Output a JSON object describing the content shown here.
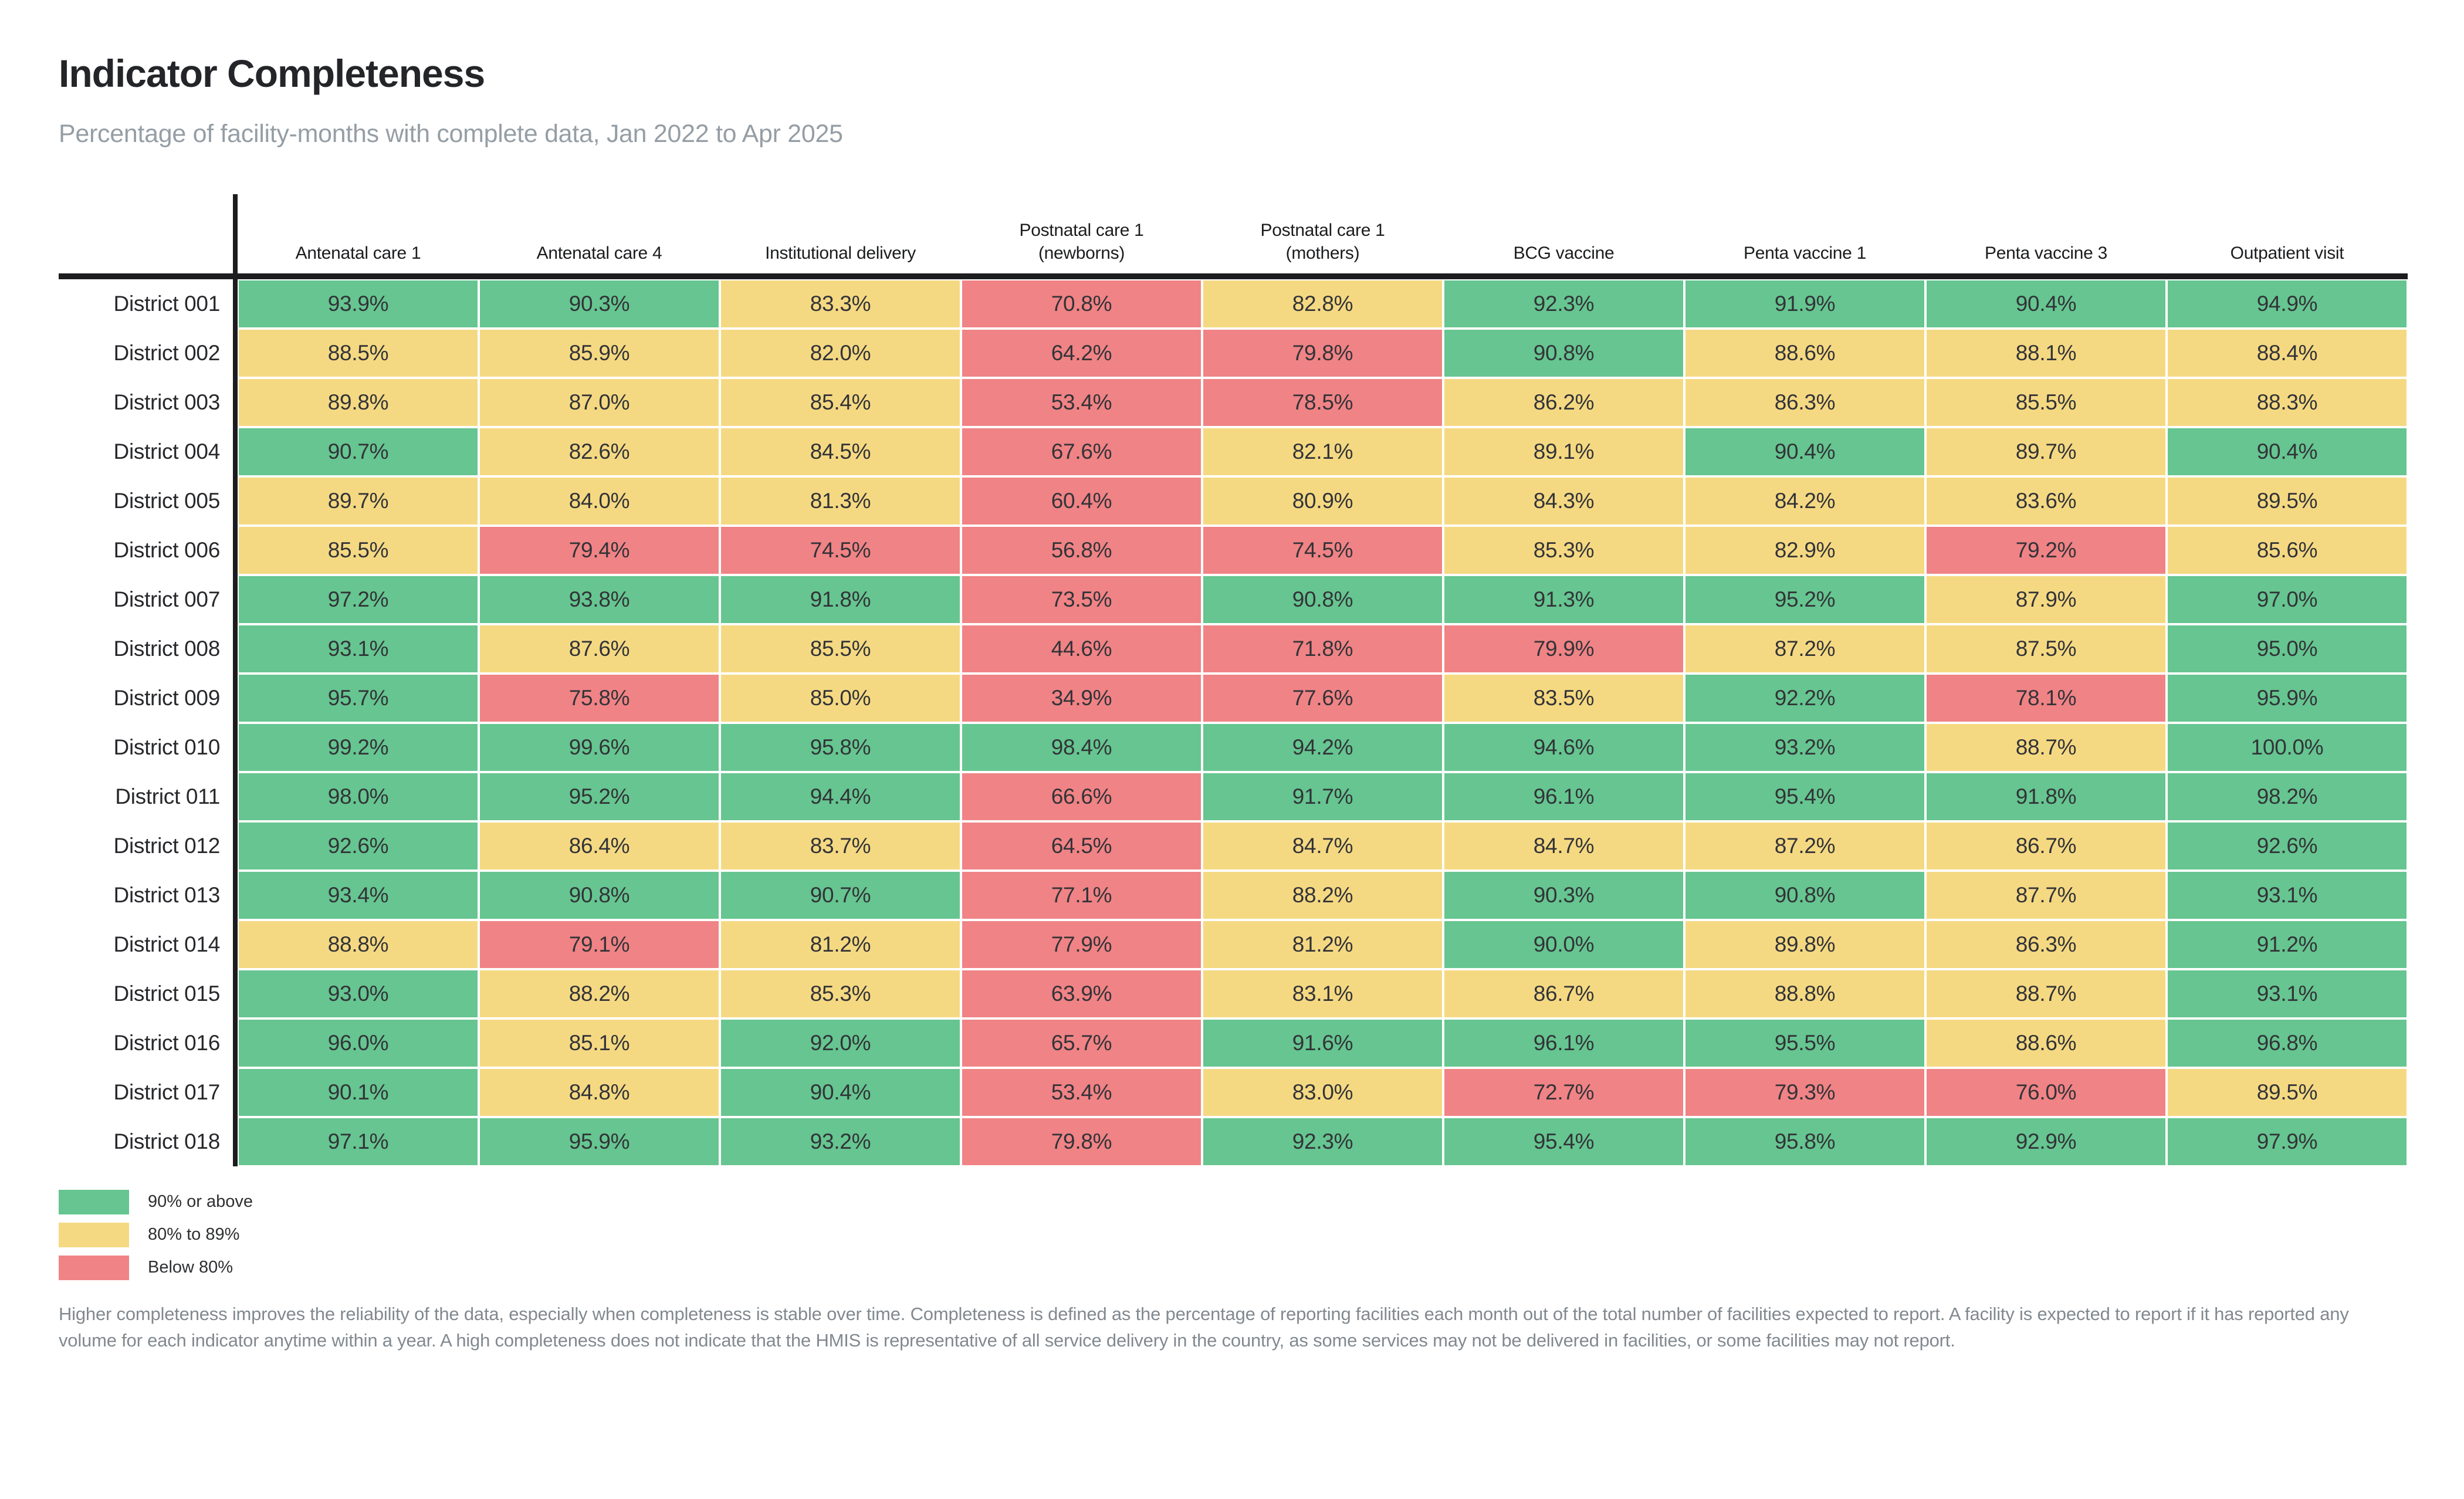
{
  "header": {
    "title": "Indicator Completeness",
    "subtitle": "Percentage of facility-months with complete data, Jan 2022 to Apr 2025"
  },
  "chart_data": {
    "type": "heatmap",
    "title": "Indicator Completeness",
    "subtitle": "Percentage of facility-months with complete data, Jan 2022 to Apr 2025",
    "unit": "%",
    "columns": [
      "Antenatal care 1",
      "Antenatal care 4",
      "Institutional delivery",
      "Postnatal care 1\n(newborns)",
      "Postnatal care 1\n(mothers)",
      "BCG vaccine",
      "Penta vaccine 1",
      "Penta vaccine 3",
      "Outpatient visit"
    ],
    "rows": [
      "District 001",
      "District 002",
      "District 003",
      "District 004",
      "District 005",
      "District 006",
      "District 007",
      "District 008",
      "District 009",
      "District 010",
      "District 011",
      "District 012",
      "District 013",
      "District 014",
      "District 015",
      "District 016",
      "District 017",
      "District 018"
    ],
    "values": [
      [
        93.9,
        90.3,
        83.3,
        70.8,
        82.8,
        92.3,
        91.9,
        90.4,
        94.9
      ],
      [
        88.5,
        85.9,
        82.0,
        64.2,
        79.8,
        90.8,
        88.6,
        88.1,
        88.4
      ],
      [
        89.8,
        87.0,
        85.4,
        53.4,
        78.5,
        86.2,
        86.3,
        85.5,
        88.3
      ],
      [
        90.7,
        82.6,
        84.5,
        67.6,
        82.1,
        89.1,
        90.4,
        89.7,
        90.4
      ],
      [
        89.7,
        84.0,
        81.3,
        60.4,
        80.9,
        84.3,
        84.2,
        83.6,
        89.5
      ],
      [
        85.5,
        79.4,
        74.5,
        56.8,
        74.5,
        85.3,
        82.9,
        79.2,
        85.6
      ],
      [
        97.2,
        93.8,
        91.8,
        73.5,
        90.8,
        91.3,
        95.2,
        87.9,
        97.0
      ],
      [
        93.1,
        87.6,
        85.5,
        44.6,
        71.8,
        79.9,
        87.2,
        87.5,
        95.0
      ],
      [
        95.7,
        75.8,
        85.0,
        34.9,
        77.6,
        83.5,
        92.2,
        78.1,
        95.9
      ],
      [
        99.2,
        99.6,
        95.8,
        98.4,
        94.2,
        94.6,
        93.2,
        88.7,
        100.0
      ],
      [
        98.0,
        95.2,
        94.4,
        66.6,
        91.7,
        96.1,
        95.4,
        91.8,
        98.2
      ],
      [
        92.6,
        86.4,
        83.7,
        64.5,
        84.7,
        84.7,
        87.2,
        86.7,
        92.6
      ],
      [
        93.4,
        90.8,
        90.7,
        77.1,
        88.2,
        90.3,
        90.8,
        87.7,
        93.1
      ],
      [
        88.8,
        79.1,
        81.2,
        77.9,
        81.2,
        90.0,
        89.8,
        86.3,
        91.2
      ],
      [
        93.0,
        88.2,
        85.3,
        63.9,
        83.1,
        86.7,
        88.8,
        88.7,
        93.1
      ],
      [
        96.0,
        85.1,
        92.0,
        65.7,
        91.6,
        96.1,
        95.5,
        88.6,
        96.8
      ],
      [
        90.1,
        84.8,
        90.4,
        53.4,
        83.0,
        72.7,
        79.3,
        76.0,
        89.5
      ],
      [
        97.1,
        95.9,
        93.2,
        79.8,
        92.3,
        95.4,
        95.8,
        92.9,
        97.9
      ]
    ],
    "thresholds": {
      "green_min": 90,
      "yellow_min": 80
    },
    "legend_position": "bottom-left",
    "grid": false
  },
  "colors": {
    "green": "#66C590",
    "yellow": "#F5D982",
    "red": "#F08385",
    "spine": "#1D1D1F"
  },
  "legend": {
    "items": [
      {
        "key": "green",
        "label": "90% or above"
      },
      {
        "key": "yellow",
        "label": "80% to 89%"
      },
      {
        "key": "red",
        "label": "Below 80%"
      }
    ]
  },
  "footnote": {
    "text": "Higher completeness improves the reliability of the data, especially when completeness is stable over time. Completeness is defined as the percentage of reporting facilities each month out of the total number of facilities expected to report. A facility is expected to report if it has reported any volume for each indicator anytime within a year. A high completeness does not indicate that the HMIS is representative of all service delivery in the country, as some services may not be delivered in facilities, or some facilities may not report."
  }
}
